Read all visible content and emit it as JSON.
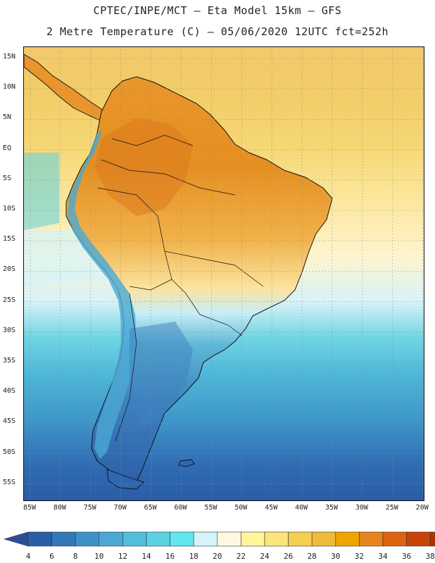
{
  "header": {
    "line1": "CPTEC/INPE/MCT –  Eta Model 15km – GFS",
    "line2": "2 Metre Temperature (C) – 05/06/2020 12UTC fct=252h"
  },
  "map": {
    "lat_labels": [
      "15N",
      "10N",
      "5N",
      "EQ",
      "5S",
      "10S",
      "15S",
      "20S",
      "25S",
      "30S",
      "35S",
      "40S",
      "45S",
      "50S",
      "55S"
    ],
    "lon_labels": [
      "85W",
      "80W",
      "75W",
      "70W",
      "65W",
      "60W",
      "55W",
      "50W",
      "45W",
      "40W",
      "35W",
      "30W",
      "25W",
      "20W"
    ],
    "grid": "dotted"
  },
  "colorbar": {
    "ticks": [
      "4",
      "6",
      "8",
      "10",
      "12",
      "14",
      "16",
      "18",
      "20",
      "22",
      "24",
      "26",
      "28",
      "30",
      "32",
      "34",
      "36",
      "38"
    ],
    "colors": [
      "#2a5fa8",
      "#3378b8",
      "#3d93c8",
      "#4aa9d4",
      "#52bedc",
      "#5ad2e4",
      "#62e6f0",
      "#d4f4fa",
      "#fff8e0",
      "#fff59a",
      "#fce47a",
      "#f4cf50",
      "#eebc3a",
      "#f0a400",
      "#e8841c",
      "#dc6410",
      "#c84408",
      "#b33005"
    ],
    "under_color": "#2a4f98",
    "over_color": "#b13a10"
  }
}
